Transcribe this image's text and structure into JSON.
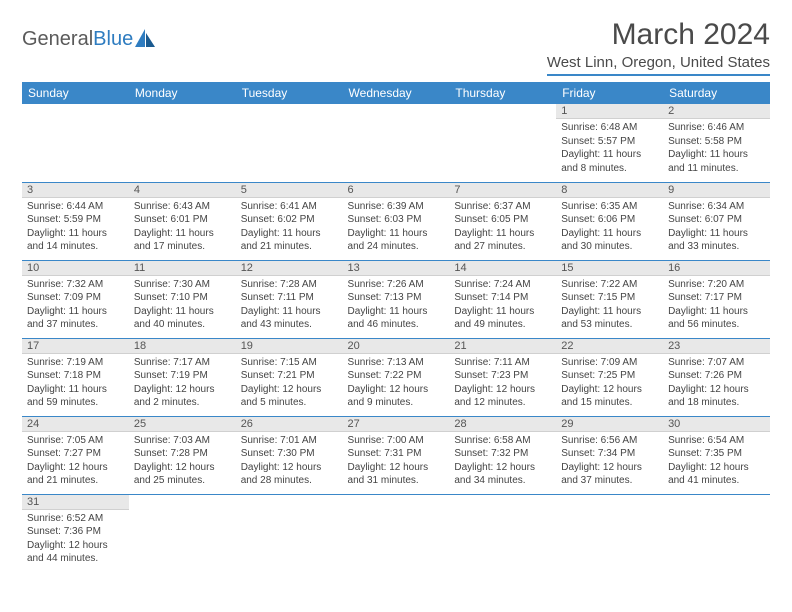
{
  "logo": {
    "text1": "General",
    "text2": "Blue"
  },
  "title": "March 2024",
  "location": "West Linn, Oregon, United States",
  "colors": {
    "header_bg": "#3a87c8",
    "header_text": "#ffffff",
    "daynum_bg": "#e8e8e8",
    "border": "#3a87c8",
    "logo_blue": "#2e7cc0",
    "logo_gray": "#5a5a5a"
  },
  "weekdays": [
    "Sunday",
    "Monday",
    "Tuesday",
    "Wednesday",
    "Thursday",
    "Friday",
    "Saturday"
  ],
  "weeks": [
    [
      null,
      null,
      null,
      null,
      null,
      {
        "n": "1",
        "sr": "Sunrise: 6:48 AM",
        "ss": "Sunset: 5:57 PM",
        "dl": "Daylight: 11 hours and 8 minutes."
      },
      {
        "n": "2",
        "sr": "Sunrise: 6:46 AM",
        "ss": "Sunset: 5:58 PM",
        "dl": "Daylight: 11 hours and 11 minutes."
      }
    ],
    [
      {
        "n": "3",
        "sr": "Sunrise: 6:44 AM",
        "ss": "Sunset: 5:59 PM",
        "dl": "Daylight: 11 hours and 14 minutes."
      },
      {
        "n": "4",
        "sr": "Sunrise: 6:43 AM",
        "ss": "Sunset: 6:01 PM",
        "dl": "Daylight: 11 hours and 17 minutes."
      },
      {
        "n": "5",
        "sr": "Sunrise: 6:41 AM",
        "ss": "Sunset: 6:02 PM",
        "dl": "Daylight: 11 hours and 21 minutes."
      },
      {
        "n": "6",
        "sr": "Sunrise: 6:39 AM",
        "ss": "Sunset: 6:03 PM",
        "dl": "Daylight: 11 hours and 24 minutes."
      },
      {
        "n": "7",
        "sr": "Sunrise: 6:37 AM",
        "ss": "Sunset: 6:05 PM",
        "dl": "Daylight: 11 hours and 27 minutes."
      },
      {
        "n": "8",
        "sr": "Sunrise: 6:35 AM",
        "ss": "Sunset: 6:06 PM",
        "dl": "Daylight: 11 hours and 30 minutes."
      },
      {
        "n": "9",
        "sr": "Sunrise: 6:34 AM",
        "ss": "Sunset: 6:07 PM",
        "dl": "Daylight: 11 hours and 33 minutes."
      }
    ],
    [
      {
        "n": "10",
        "sr": "Sunrise: 7:32 AM",
        "ss": "Sunset: 7:09 PM",
        "dl": "Daylight: 11 hours and 37 minutes."
      },
      {
        "n": "11",
        "sr": "Sunrise: 7:30 AM",
        "ss": "Sunset: 7:10 PM",
        "dl": "Daylight: 11 hours and 40 minutes."
      },
      {
        "n": "12",
        "sr": "Sunrise: 7:28 AM",
        "ss": "Sunset: 7:11 PM",
        "dl": "Daylight: 11 hours and 43 minutes."
      },
      {
        "n": "13",
        "sr": "Sunrise: 7:26 AM",
        "ss": "Sunset: 7:13 PM",
        "dl": "Daylight: 11 hours and 46 minutes."
      },
      {
        "n": "14",
        "sr": "Sunrise: 7:24 AM",
        "ss": "Sunset: 7:14 PM",
        "dl": "Daylight: 11 hours and 49 minutes."
      },
      {
        "n": "15",
        "sr": "Sunrise: 7:22 AM",
        "ss": "Sunset: 7:15 PM",
        "dl": "Daylight: 11 hours and 53 minutes."
      },
      {
        "n": "16",
        "sr": "Sunrise: 7:20 AM",
        "ss": "Sunset: 7:17 PM",
        "dl": "Daylight: 11 hours and 56 minutes."
      }
    ],
    [
      {
        "n": "17",
        "sr": "Sunrise: 7:19 AM",
        "ss": "Sunset: 7:18 PM",
        "dl": "Daylight: 11 hours and 59 minutes."
      },
      {
        "n": "18",
        "sr": "Sunrise: 7:17 AM",
        "ss": "Sunset: 7:19 PM",
        "dl": "Daylight: 12 hours and 2 minutes."
      },
      {
        "n": "19",
        "sr": "Sunrise: 7:15 AM",
        "ss": "Sunset: 7:21 PM",
        "dl": "Daylight: 12 hours and 5 minutes."
      },
      {
        "n": "20",
        "sr": "Sunrise: 7:13 AM",
        "ss": "Sunset: 7:22 PM",
        "dl": "Daylight: 12 hours and 9 minutes."
      },
      {
        "n": "21",
        "sr": "Sunrise: 7:11 AM",
        "ss": "Sunset: 7:23 PM",
        "dl": "Daylight: 12 hours and 12 minutes."
      },
      {
        "n": "22",
        "sr": "Sunrise: 7:09 AM",
        "ss": "Sunset: 7:25 PM",
        "dl": "Daylight: 12 hours and 15 minutes."
      },
      {
        "n": "23",
        "sr": "Sunrise: 7:07 AM",
        "ss": "Sunset: 7:26 PM",
        "dl": "Daylight: 12 hours and 18 minutes."
      }
    ],
    [
      {
        "n": "24",
        "sr": "Sunrise: 7:05 AM",
        "ss": "Sunset: 7:27 PM",
        "dl": "Daylight: 12 hours and 21 minutes."
      },
      {
        "n": "25",
        "sr": "Sunrise: 7:03 AM",
        "ss": "Sunset: 7:28 PM",
        "dl": "Daylight: 12 hours and 25 minutes."
      },
      {
        "n": "26",
        "sr": "Sunrise: 7:01 AM",
        "ss": "Sunset: 7:30 PM",
        "dl": "Daylight: 12 hours and 28 minutes."
      },
      {
        "n": "27",
        "sr": "Sunrise: 7:00 AM",
        "ss": "Sunset: 7:31 PM",
        "dl": "Daylight: 12 hours and 31 minutes."
      },
      {
        "n": "28",
        "sr": "Sunrise: 6:58 AM",
        "ss": "Sunset: 7:32 PM",
        "dl": "Daylight: 12 hours and 34 minutes."
      },
      {
        "n": "29",
        "sr": "Sunrise: 6:56 AM",
        "ss": "Sunset: 7:34 PM",
        "dl": "Daylight: 12 hours and 37 minutes."
      },
      {
        "n": "30",
        "sr": "Sunrise: 6:54 AM",
        "ss": "Sunset: 7:35 PM",
        "dl": "Daylight: 12 hours and 41 minutes."
      }
    ],
    [
      {
        "n": "31",
        "sr": "Sunrise: 6:52 AM",
        "ss": "Sunset: 7:36 PM",
        "dl": "Daylight: 12 hours and 44 minutes."
      },
      null,
      null,
      null,
      null,
      null,
      null
    ]
  ]
}
